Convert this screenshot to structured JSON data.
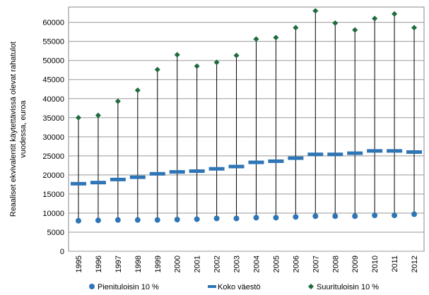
{
  "chart_data": {
    "type": "highlow",
    "y_label": [
      "Reaaliset ekvivalentit käytettävissä olevat rahatulot",
      "vuodessa, euroa"
    ],
    "categories": [
      "1995",
      "1996",
      "1997",
      "1998",
      "1999",
      "2000",
      "2001",
      "2002",
      "2003",
      "2004",
      "2005",
      "2006",
      "2007",
      "2008",
      "2009",
      "2010",
      "2011",
      "2012"
    ],
    "series": [
      {
        "name": "Pienituloisin 10 %",
        "color": "#2e75b6",
        "marker": "circle",
        "values": [
          8000,
          8100,
          8200,
          8200,
          8200,
          8300,
          8400,
          8600,
          8600,
          8800,
          8800,
          9000,
          9200,
          9200,
          9200,
          9400,
          9400,
          9700
        ]
      },
      {
        "name": "Koko väestö",
        "color": "#2e75b6",
        "marker": "dash",
        "values": [
          17700,
          18000,
          18800,
          19400,
          20300,
          20800,
          21000,
          21600,
          22200,
          23300,
          23600,
          24400,
          25400,
          25400,
          25700,
          26300,
          26300,
          26000
        ]
      },
      {
        "name": "Suurituloisin 10 %",
        "color": "#1e6b3c",
        "marker": "diamond",
        "values": [
          35000,
          35600,
          39300,
          42200,
          47600,
          51500,
          48500,
          49500,
          51300,
          55600,
          56000,
          58600,
          63000,
          59800,
          58000,
          61000,
          62200,
          58600
        ]
      }
    ],
    "ylim": [
      0,
      64000
    ],
    "yticks": [
      0,
      5000,
      10000,
      15000,
      20000,
      25000,
      30000,
      35000,
      40000,
      45000,
      50000,
      55000,
      60000
    ],
    "grid": true
  }
}
